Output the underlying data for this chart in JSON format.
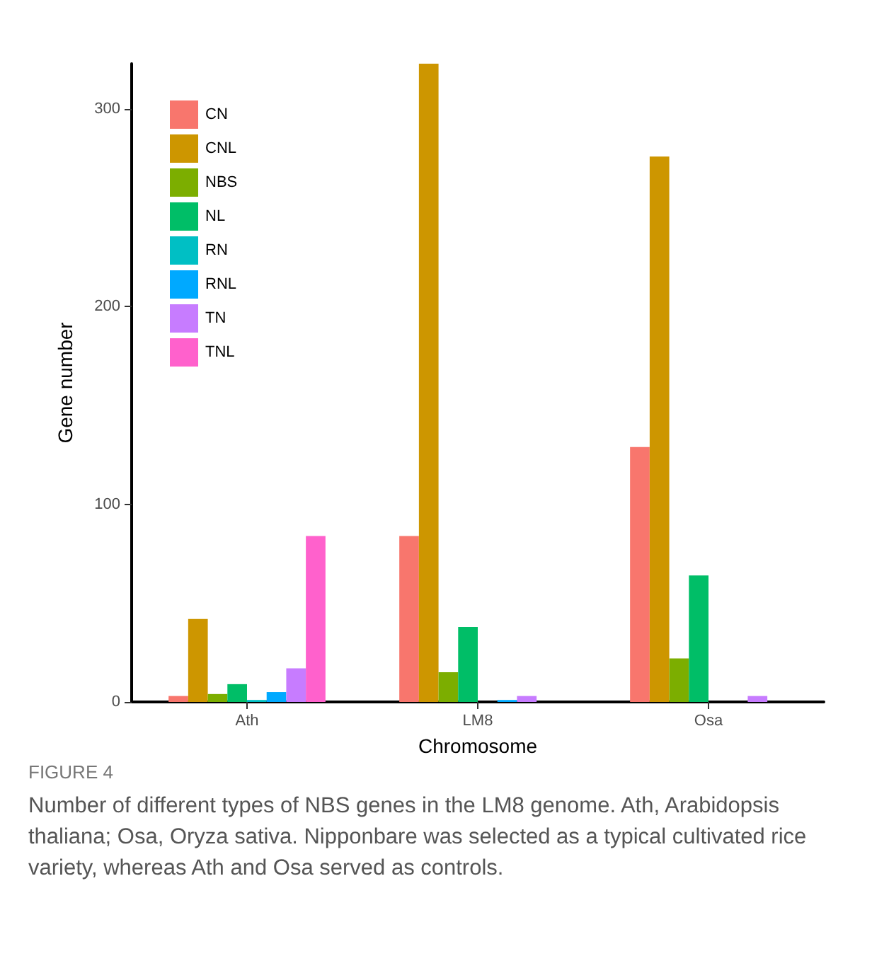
{
  "chart_data": {
    "type": "bar",
    "xlabel": "Chromosome",
    "ylabel": "Gene number",
    "categories": [
      "Ath",
      "LM8",
      "Osa"
    ],
    "series": [
      {
        "name": "CN",
        "color": "#f8766d",
        "values": [
          3,
          84,
          129
        ]
      },
      {
        "name": "CNL",
        "color": "#cd9600",
        "values": [
          42,
          323,
          276
        ]
      },
      {
        "name": "NBS",
        "color": "#7cae00",
        "values": [
          4,
          15,
          22
        ]
      },
      {
        "name": "NL",
        "color": "#00be67",
        "values": [
          9,
          38,
          64
        ]
      },
      {
        "name": "RN",
        "color": "#00bfc4",
        "values": [
          1,
          0,
          0
        ]
      },
      {
        "name": "RNL",
        "color": "#00a9ff",
        "values": [
          5,
          1,
          0
        ]
      },
      {
        "name": "TN",
        "color": "#c77cff",
        "values": [
          17,
          3,
          3
        ]
      },
      {
        "name": "TNL",
        "color": "#ff61cc",
        "values": [
          84,
          0,
          0
        ]
      }
    ],
    "ylim": [
      0,
      323
    ],
    "yticks": [
      0,
      100,
      200,
      300
    ],
    "grid": false,
    "legend": "top left",
    "annotations": [
      "FIGURE 4",
      "Number of different types of NBS genes in the LM8 genome. Ath, Arabidopsis thaliana; Osa, Oryza sativa. Nipponbare was selected as a typical cultivated rice variety, whereas Ath and Osa served as controls."
    ]
  }
}
